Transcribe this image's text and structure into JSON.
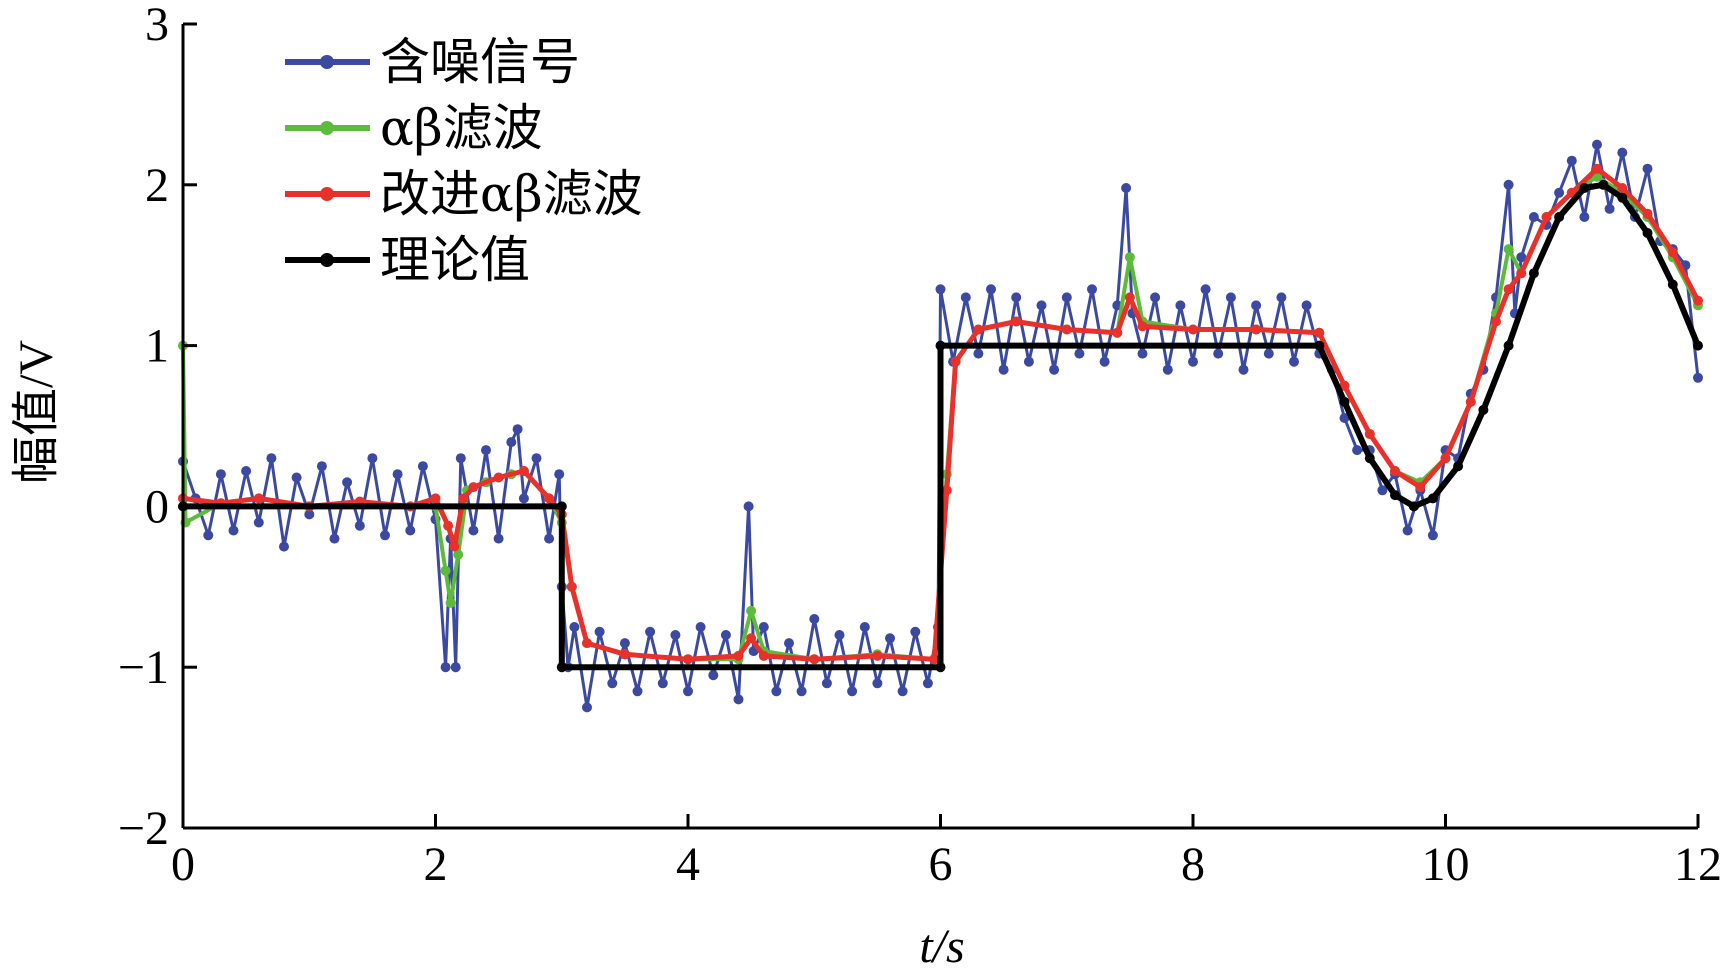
{
  "chart_data": {
    "type": "line",
    "xlabel": "t/s",
    "ylabel": "幅值/V",
    "xlim": [
      0,
      12
    ],
    "ylim": [
      -2,
      3
    ],
    "x_ticks": [
      "0",
      "2",
      "4",
      "6",
      "8",
      "10",
      "12"
    ],
    "y_ticks": [
      "−2",
      "−1",
      "0",
      "1",
      "2",
      "3"
    ],
    "grid": false,
    "legend_position": "top-left",
    "series": [
      {
        "name": "含噪信号",
        "color": "#3b4aa0",
        "points": [
          [
            0,
            0.28
          ],
          [
            0.1,
            0.05
          ],
          [
            0.2,
            -0.18
          ],
          [
            0.3,
            0.2
          ],
          [
            0.4,
            -0.15
          ],
          [
            0.5,
            0.22
          ],
          [
            0.6,
            -0.1
          ],
          [
            0.7,
            0.3
          ],
          [
            0.8,
            -0.25
          ],
          [
            0.9,
            0.18
          ],
          [
            1.0,
            -0.05
          ],
          [
            1.1,
            0.25
          ],
          [
            1.2,
            -0.2
          ],
          [
            1.3,
            0.15
          ],
          [
            1.4,
            -0.12
          ],
          [
            1.5,
            0.3
          ],
          [
            1.6,
            -0.18
          ],
          [
            1.7,
            0.2
          ],
          [
            1.8,
            -0.15
          ],
          [
            1.9,
            0.25
          ],
          [
            2.0,
            -0.08
          ],
          [
            2.08,
            -1.0
          ],
          [
            2.12,
            -0.2
          ],
          [
            2.16,
            -1.0
          ],
          [
            2.2,
            0.3
          ],
          [
            2.3,
            -0.15
          ],
          [
            2.4,
            0.35
          ],
          [
            2.5,
            -0.2
          ],
          [
            2.6,
            0.4
          ],
          [
            2.65,
            0.48
          ],
          [
            2.7,
            0.05
          ],
          [
            2.8,
            0.3
          ],
          [
            2.9,
            -0.2
          ],
          [
            2.98,
            0.2
          ],
          [
            3.0,
            -0.5
          ],
          [
            3.05,
            -1.0
          ],
          [
            3.1,
            -0.75
          ],
          [
            3.2,
            -1.25
          ],
          [
            3.3,
            -0.78
          ],
          [
            3.4,
            -1.1
          ],
          [
            3.5,
            -0.85
          ],
          [
            3.6,
            -1.15
          ],
          [
            3.7,
            -0.78
          ],
          [
            3.8,
            -1.1
          ],
          [
            3.9,
            -0.8
          ],
          [
            4.0,
            -1.15
          ],
          [
            4.1,
            -0.75
          ],
          [
            4.2,
            -1.05
          ],
          [
            4.3,
            -0.8
          ],
          [
            4.4,
            -1.2
          ],
          [
            4.48,
            -0.0
          ],
          [
            4.52,
            -0.9
          ],
          [
            4.6,
            -0.75
          ],
          [
            4.7,
            -1.15
          ],
          [
            4.8,
            -0.85
          ],
          [
            4.9,
            -1.15
          ],
          [
            5.0,
            -0.7
          ],
          [
            5.1,
            -1.1
          ],
          [
            5.2,
            -0.8
          ],
          [
            5.3,
            -1.15
          ],
          [
            5.4,
            -0.75
          ],
          [
            5.5,
            -1.1
          ],
          [
            5.6,
            -0.82
          ],
          [
            5.7,
            -1.15
          ],
          [
            5.8,
            -0.78
          ],
          [
            5.9,
            -1.1
          ],
          [
            5.98,
            -0.75
          ],
          [
            6.0,
            1.35
          ],
          [
            6.1,
            0.9
          ],
          [
            6.2,
            1.3
          ],
          [
            6.3,
            0.95
          ],
          [
            6.4,
            1.35
          ],
          [
            6.5,
            0.85
          ],
          [
            6.6,
            1.3
          ],
          [
            6.7,
            0.9
          ],
          [
            6.8,
            1.25
          ],
          [
            6.9,
            0.85
          ],
          [
            7.0,
            1.3
          ],
          [
            7.1,
            0.95
          ],
          [
            7.2,
            1.35
          ],
          [
            7.3,
            0.9
          ],
          [
            7.4,
            1.25
          ],
          [
            7.47,
            1.98
          ],
          [
            7.52,
            1.2
          ],
          [
            7.6,
            0.95
          ],
          [
            7.7,
            1.3
          ],
          [
            7.8,
            0.85
          ],
          [
            7.9,
            1.25
          ],
          [
            8.0,
            0.9
          ],
          [
            8.1,
            1.35
          ],
          [
            8.2,
            0.95
          ],
          [
            8.3,
            1.3
          ],
          [
            8.4,
            0.85
          ],
          [
            8.5,
            1.25
          ],
          [
            8.6,
            0.95
          ],
          [
            8.7,
            1.3
          ],
          [
            8.8,
            0.9
          ],
          [
            8.9,
            1.25
          ],
          [
            9.0,
            0.95
          ],
          [
            9.1,
            0.85
          ],
          [
            9.2,
            0.55
          ],
          [
            9.3,
            0.35
          ],
          [
            9.4,
            0.35
          ],
          [
            9.5,
            0.1
          ],
          [
            9.6,
            0.2
          ],
          [
            9.7,
            -0.15
          ],
          [
            9.8,
            0.1
          ],
          [
            9.9,
            -0.18
          ],
          [
            10.0,
            0.35
          ],
          [
            10.1,
            0.3
          ],
          [
            10.2,
            0.7
          ],
          [
            10.3,
            0.85
          ],
          [
            10.4,
            1.3
          ],
          [
            10.5,
            2.0
          ],
          [
            10.55,
            1.2
          ],
          [
            10.6,
            1.55
          ],
          [
            10.7,
            1.8
          ],
          [
            10.8,
            1.75
          ],
          [
            10.9,
            1.95
          ],
          [
            11.0,
            2.15
          ],
          [
            11.1,
            1.8
          ],
          [
            11.2,
            2.25
          ],
          [
            11.3,
            1.85
          ],
          [
            11.4,
            2.2
          ],
          [
            11.5,
            1.8
          ],
          [
            11.6,
            2.1
          ],
          [
            11.7,
            1.65
          ],
          [
            11.8,
            1.6
          ],
          [
            11.9,
            1.5
          ],
          [
            12.0,
            0.8
          ]
        ]
      },
      {
        "name": "αβ滤波",
        "color": "#5dbb3c",
        "points": [
          [
            0,
            1.0
          ],
          [
            0.02,
            -0.1
          ],
          [
            0.3,
            0.02
          ],
          [
            0.6,
            0.05
          ],
          [
            1.0,
            0.0
          ],
          [
            1.4,
            0.03
          ],
          [
            1.8,
            0.0
          ],
          [
            2.0,
            0.0
          ],
          [
            2.08,
            -0.4
          ],
          [
            2.12,
            -0.6
          ],
          [
            2.18,
            -0.3
          ],
          [
            2.25,
            0.1
          ],
          [
            2.4,
            0.15
          ],
          [
            2.6,
            0.2
          ],
          [
            2.7,
            0.22
          ],
          [
            2.9,
            0.05
          ],
          [
            3.0,
            -0.1
          ],
          [
            3.08,
            -0.5
          ],
          [
            3.2,
            -0.85
          ],
          [
            3.5,
            -0.92
          ],
          [
            4.0,
            -0.95
          ],
          [
            4.4,
            -0.95
          ],
          [
            4.5,
            -0.65
          ],
          [
            4.6,
            -0.9
          ],
          [
            5.0,
            -0.95
          ],
          [
            5.5,
            -0.92
          ],
          [
            5.95,
            -0.95
          ],
          [
            6.05,
            0.2
          ],
          [
            6.12,
            0.9
          ],
          [
            6.3,
            1.1
          ],
          [
            6.6,
            1.15
          ],
          [
            7.0,
            1.1
          ],
          [
            7.4,
            1.08
          ],
          [
            7.5,
            1.55
          ],
          [
            7.6,
            1.15
          ],
          [
            8.0,
            1.1
          ],
          [
            8.5,
            1.1
          ],
          [
            9.0,
            1.08
          ],
          [
            9.2,
            0.75
          ],
          [
            9.4,
            0.45
          ],
          [
            9.6,
            0.22
          ],
          [
            9.8,
            0.15
          ],
          [
            10.0,
            0.3
          ],
          [
            10.2,
            0.65
          ],
          [
            10.4,
            1.2
          ],
          [
            10.5,
            1.6
          ],
          [
            10.6,
            1.45
          ],
          [
            10.8,
            1.8
          ],
          [
            11.0,
            1.95
          ],
          [
            11.2,
            2.05
          ],
          [
            11.4,
            1.95
          ],
          [
            11.6,
            1.8
          ],
          [
            11.8,
            1.55
          ],
          [
            12.0,
            1.25
          ]
        ]
      },
      {
        "name": "改进αβ滤波",
        "color": "#e8312a",
        "points": [
          [
            0,
            0.05
          ],
          [
            0.3,
            0.02
          ],
          [
            0.6,
            0.05
          ],
          [
            1.0,
            0.0
          ],
          [
            1.4,
            0.03
          ],
          [
            1.8,
            0.0
          ],
          [
            2.0,
            0.05
          ],
          [
            2.1,
            -0.12
          ],
          [
            2.15,
            -0.25
          ],
          [
            2.22,
            0.05
          ],
          [
            2.3,
            0.12
          ],
          [
            2.5,
            0.18
          ],
          [
            2.7,
            0.22
          ],
          [
            2.9,
            0.05
          ],
          [
            3.0,
            -0.05
          ],
          [
            3.08,
            -0.5
          ],
          [
            3.2,
            -0.85
          ],
          [
            3.5,
            -0.92
          ],
          [
            4.0,
            -0.95
          ],
          [
            4.4,
            -0.93
          ],
          [
            4.5,
            -0.82
          ],
          [
            4.6,
            -0.93
          ],
          [
            5.0,
            -0.95
          ],
          [
            5.5,
            -0.93
          ],
          [
            5.95,
            -0.95
          ],
          [
            6.05,
            0.1
          ],
          [
            6.12,
            0.9
          ],
          [
            6.3,
            1.1
          ],
          [
            6.6,
            1.15
          ],
          [
            7.0,
            1.1
          ],
          [
            7.4,
            1.08
          ],
          [
            7.5,
            1.3
          ],
          [
            7.6,
            1.12
          ],
          [
            8.0,
            1.1
          ],
          [
            8.5,
            1.1
          ],
          [
            9.0,
            1.08
          ],
          [
            9.2,
            0.75
          ],
          [
            9.4,
            0.45
          ],
          [
            9.6,
            0.22
          ],
          [
            9.8,
            0.12
          ],
          [
            10.0,
            0.3
          ],
          [
            10.2,
            0.65
          ],
          [
            10.4,
            1.15
          ],
          [
            10.5,
            1.35
          ],
          [
            10.6,
            1.45
          ],
          [
            10.8,
            1.8
          ],
          [
            11.0,
            1.95
          ],
          [
            11.2,
            2.1
          ],
          [
            11.4,
            1.98
          ],
          [
            11.6,
            1.82
          ],
          [
            11.8,
            1.58
          ],
          [
            12.0,
            1.28
          ]
        ]
      },
      {
        "name": "理论值",
        "color": "#000000",
        "points": [
          [
            0,
            0
          ],
          [
            3,
            0
          ],
          [
            3,
            -1
          ],
          [
            6,
            -1
          ],
          [
            6,
            1
          ],
          [
            9,
            1
          ],
          [
            9.2,
            0.65
          ],
          [
            9.4,
            0.3
          ],
          [
            9.6,
            0.07
          ],
          [
            9.75,
            0.0
          ],
          [
            9.9,
            0.05
          ],
          [
            10.1,
            0.25
          ],
          [
            10.3,
            0.6
          ],
          [
            10.5,
            1.0
          ],
          [
            10.7,
            1.45
          ],
          [
            10.9,
            1.8
          ],
          [
            11.1,
            1.98
          ],
          [
            11.25,
            2.0
          ],
          [
            11.4,
            1.92
          ],
          [
            11.6,
            1.7
          ],
          [
            11.8,
            1.38
          ],
          [
            12.0,
            1.0
          ]
        ]
      }
    ]
  }
}
